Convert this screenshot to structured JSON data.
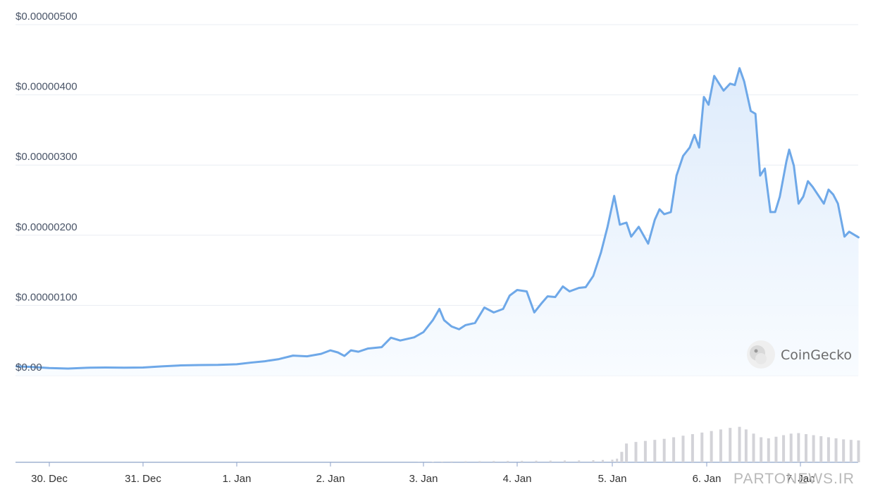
{
  "chart_data": {
    "type": "area",
    "y_tick_labels": [
      "$0.00",
      "$0.00000100",
      "$0.00000200",
      "$0.00000300",
      "$0.00000400",
      "$0.00000500"
    ],
    "y_tick_values": [
      0,
      1e-06,
      2e-06,
      3e-06,
      4e-06,
      5e-06
    ],
    "ylim": [
      0,
      5e-06
    ],
    "x_tick_labels": [
      "30. Dec",
      "31. Dec",
      "1. Jan",
      "2. Jan",
      "3. Jan",
      "4. Jan",
      "5. Jan",
      "6. Jan",
      "7. Jan"
    ],
    "x_tick_values": [
      0,
      1,
      2,
      3,
      4,
      5,
      6,
      7,
      8
    ],
    "xlim": [
      -0.35,
      8.62
    ],
    "grid": true,
    "line_color": "#6ea8e8",
    "fill_color": "#dceafb",
    "volume_color": "#d3d3d8",
    "price_series": [
      [
        -0.35,
        1.32e-07
      ],
      [
        -0.2,
        1.24e-07
      ],
      [
        0,
        1.08e-07
      ],
      [
        0.2,
        1e-07
      ],
      [
        0.4,
        1.12e-07
      ],
      [
        0.6,
        1.15e-07
      ],
      [
        0.8,
        1.13e-07
      ],
      [
        1.0,
        1.15e-07
      ],
      [
        1.2,
        1.32e-07
      ],
      [
        1.4,
        1.45e-07
      ],
      [
        1.6,
        1.5e-07
      ],
      [
        1.8,
        1.53e-07
      ],
      [
        2.0,
        1.62e-07
      ],
      [
        2.15,
        1.85e-07
      ],
      [
        2.3,
        2.05e-07
      ],
      [
        2.45,
        2.35e-07
      ],
      [
        2.6,
        2.85e-07
      ],
      [
        2.75,
        2.75e-07
      ],
      [
        2.9,
        3.1e-07
      ],
      [
        3.0,
        3.6e-07
      ],
      [
        3.08,
        3.3e-07
      ],
      [
        3.15,
        2.8e-07
      ],
      [
        3.22,
        3.6e-07
      ],
      [
        3.3,
        3.4e-07
      ],
      [
        3.4,
        3.85e-07
      ],
      [
        3.55,
        4.05e-07
      ],
      [
        3.65,
        5.4e-07
      ],
      [
        3.75,
        5e-07
      ],
      [
        3.9,
        5.45e-07
      ],
      [
        4.0,
        6.2e-07
      ],
      [
        4.1,
        7.9e-07
      ],
      [
        4.17,
        9.5e-07
      ],
      [
        4.22,
        7.9e-07
      ],
      [
        4.3,
        7e-07
      ],
      [
        4.38,
        6.6e-07
      ],
      [
        4.45,
        7.2e-07
      ],
      [
        4.55,
        7.5e-07
      ],
      [
        4.65,
        9.7e-07
      ],
      [
        4.75,
        9e-07
      ],
      [
        4.85,
        9.5e-07
      ],
      [
        4.92,
        1.14e-06
      ],
      [
        5.0,
        1.22e-06
      ],
      [
        5.1,
        1.2e-06
      ],
      [
        5.18,
        9e-07
      ],
      [
        5.25,
        1.02e-06
      ],
      [
        5.32,
        1.13e-06
      ],
      [
        5.4,
        1.12e-06
      ],
      [
        5.48,
        1.27e-06
      ],
      [
        5.55,
        1.2e-06
      ],
      [
        5.65,
        1.25e-06
      ],
      [
        5.72,
        1.26e-06
      ],
      [
        5.8,
        1.42e-06
      ],
      [
        5.88,
        1.75e-06
      ],
      [
        5.95,
        2.12e-06
      ],
      [
        6.02,
        2.56e-06
      ],
      [
        6.08,
        2.15e-06
      ],
      [
        6.15,
        2.18e-06
      ],
      [
        6.2,
        1.98e-06
      ],
      [
        6.28,
        2.12e-06
      ],
      [
        6.38,
        1.88e-06
      ],
      [
        6.45,
        2.22e-06
      ],
      [
        6.5,
        2.37e-06
      ],
      [
        6.55,
        2.3e-06
      ],
      [
        6.62,
        2.33e-06
      ],
      [
        6.68,
        2.85e-06
      ],
      [
        6.75,
        3.13e-06
      ],
      [
        6.82,
        3.25e-06
      ],
      [
        6.87,
        3.43e-06
      ],
      [
        6.92,
        3.25e-06
      ],
      [
        6.97,
        3.97e-06
      ],
      [
        7.02,
        3.86e-06
      ],
      [
        7.08,
        4.27e-06
      ],
      [
        7.18,
        4.06e-06
      ],
      [
        7.25,
        4.16e-06
      ],
      [
        7.3,
        4.14e-06
      ],
      [
        7.35,
        4.38e-06
      ],
      [
        7.4,
        4.19e-06
      ],
      [
        7.47,
        3.77e-06
      ],
      [
        7.52,
        3.73e-06
      ],
      [
        7.57,
        2.85e-06
      ],
      [
        7.62,
        2.95e-06
      ],
      [
        7.68,
        2.33e-06
      ],
      [
        7.73,
        2.33e-06
      ],
      [
        7.78,
        2.55e-06
      ],
      [
        7.85,
        3.05e-06
      ],
      [
        7.88,
        3.22e-06
      ],
      [
        7.93,
        2.99e-06
      ],
      [
        7.98,
        2.45e-06
      ],
      [
        8.03,
        2.55e-06
      ],
      [
        8.08,
        2.77e-06
      ],
      [
        8.13,
        2.69e-06
      ],
      [
        8.2,
        2.55e-06
      ],
      [
        8.25,
        2.45e-06
      ],
      [
        8.3,
        2.65e-06
      ],
      [
        8.35,
        2.58e-06
      ],
      [
        8.4,
        2.45e-06
      ],
      [
        8.47,
        1.98e-06
      ],
      [
        8.52,
        2.05e-06
      ],
      [
        8.62,
        1.97e-06
      ]
    ],
    "volume_series": [
      [
        3.95,
        0.002
      ],
      [
        4.1,
        0.01
      ],
      [
        4.2,
        0.015
      ],
      [
        4.3,
        0.018
      ],
      [
        4.45,
        0.02
      ],
      [
        4.6,
        0.022
      ],
      [
        4.75,
        0.025
      ],
      [
        4.9,
        0.026
      ],
      [
        5.05,
        0.028
      ],
      [
        5.2,
        0.03
      ],
      [
        5.35,
        0.032
      ],
      [
        5.5,
        0.034
      ],
      [
        5.65,
        0.036
      ],
      [
        5.8,
        0.04
      ],
      [
        5.9,
        0.045
      ],
      [
        6.0,
        0.05
      ],
      [
        6.05,
        0.07
      ],
      [
        6.1,
        0.2
      ],
      [
        6.15,
        0.36
      ],
      [
        6.25,
        0.39
      ],
      [
        6.35,
        0.41
      ],
      [
        6.45,
        0.43
      ],
      [
        6.55,
        0.45
      ],
      [
        6.65,
        0.48
      ],
      [
        6.75,
        0.51
      ],
      [
        6.85,
        0.54
      ],
      [
        6.95,
        0.57
      ],
      [
        7.05,
        0.6
      ],
      [
        7.15,
        0.63
      ],
      [
        7.25,
        0.66
      ],
      [
        7.35,
        0.68
      ],
      [
        7.42,
        0.63
      ],
      [
        7.5,
        0.55
      ],
      [
        7.58,
        0.48
      ],
      [
        7.66,
        0.46
      ],
      [
        7.74,
        0.49
      ],
      [
        7.82,
        0.52
      ],
      [
        7.9,
        0.55
      ],
      [
        7.98,
        0.56
      ],
      [
        8.06,
        0.54
      ],
      [
        8.14,
        0.52
      ],
      [
        8.22,
        0.5
      ],
      [
        8.3,
        0.48
      ],
      [
        8.38,
        0.46
      ],
      [
        8.46,
        0.44
      ],
      [
        8.54,
        0.43
      ],
      [
        8.62,
        0.42
      ]
    ],
    "watermark": "CoinGecko",
    "corner_watermark": "PARTONEWS.IR"
  }
}
